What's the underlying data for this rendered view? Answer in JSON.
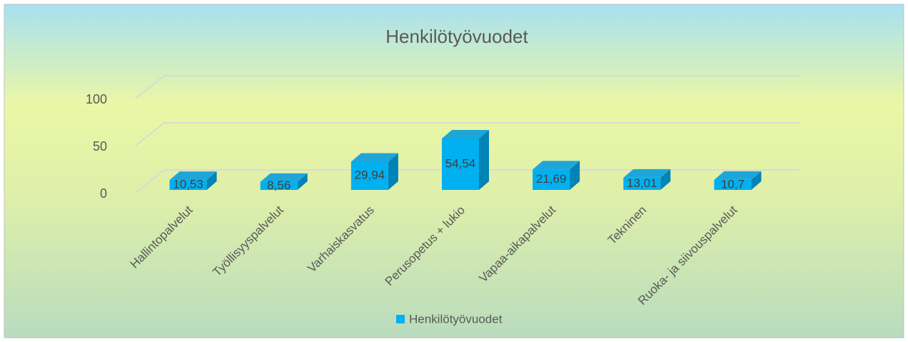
{
  "chart_data": {
    "type": "bar3d",
    "title": "Henkilötyövuodet",
    "categories": [
      "Hallintopalvelut",
      "Työllisyyspalvelut",
      "Varhaiskasvatus",
      "Perusopetus + lukio",
      "Vapaa-aikapalvelut",
      "Tekninen",
      "Ruoka- ja siivouspalvelut"
    ],
    "series": [
      {
        "name": "Henkilötyövuodet",
        "color": "#00b0f0",
        "values": [
          10.53,
          8.56,
          29.94,
          54.54,
          21.69,
          13.01,
          10.7
        ],
        "value_labels": [
          "10,53",
          "8,56",
          "29,94",
          "54,54",
          "21,69",
          "13,01",
          "10,7"
        ]
      }
    ],
    "ylim": [
      0,
      100
    ],
    "yticks": [
      0,
      50,
      100
    ],
    "grid": true,
    "legend": "bottom"
  }
}
